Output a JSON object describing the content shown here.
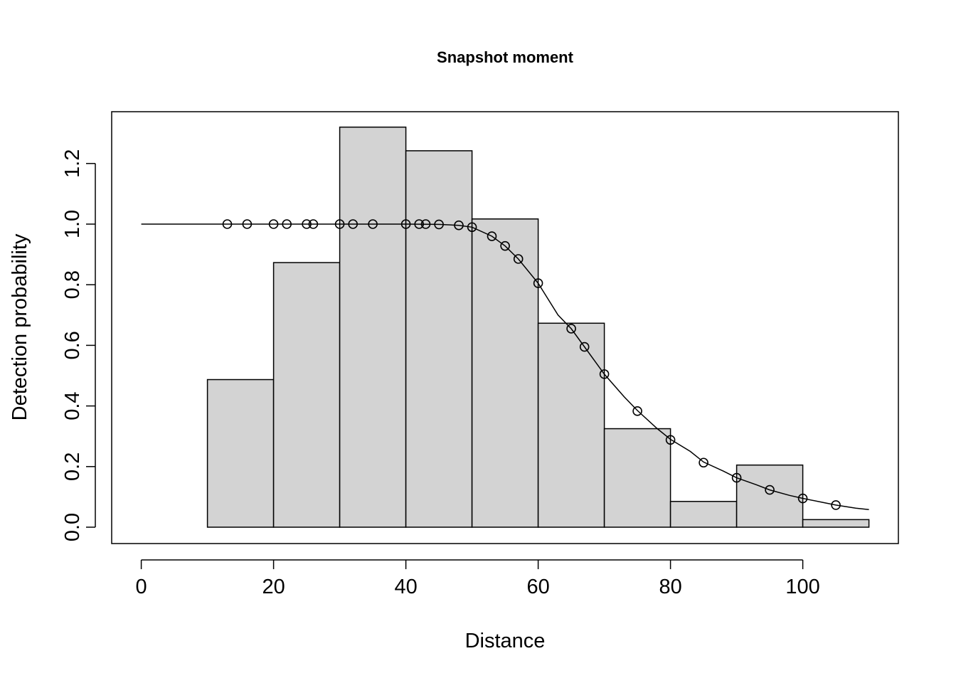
{
  "chart_data": {
    "type": "bar",
    "title": "Snapshot moment",
    "xlabel": "Distance",
    "ylabel": "Detection probability",
    "xlim": [
      0,
      110
    ],
    "ylim": [
      0,
      1.3
    ],
    "x_ticks": [
      "0",
      "20",
      "40",
      "60",
      "80",
      "100"
    ],
    "y_ticks": [
      "0.0",
      "0.2",
      "0.4",
      "0.6",
      "0.8",
      "1.0",
      "1.2"
    ],
    "histogram": {
      "bin_edges": [
        0,
        10,
        20,
        30,
        40,
        50,
        60,
        70,
        80,
        90,
        100,
        110
      ],
      "values": [
        0.0,
        0.487,
        0.873,
        1.32,
        1.242,
        1.017,
        0.673,
        0.325,
        0.085,
        0.205,
        0.025
      ],
      "fill_color": "#d3d3d3"
    },
    "fitted_curve": {
      "x": [
        0,
        5,
        10,
        15,
        20,
        25,
        30,
        35,
        40,
        45,
        48,
        50,
        53,
        55,
        57,
        60,
        63,
        65,
        67,
        70,
        73,
        75,
        78,
        80,
        83,
        85,
        88,
        90,
        93,
        95,
        98,
        100,
        103,
        105,
        108,
        110
      ],
      "y": [
        1.0,
        1.0,
        1.0,
        1.0,
        1.0,
        1.0,
        1.0,
        1.0,
        1.0,
        0.999,
        0.996,
        0.99,
        0.96,
        0.928,
        0.885,
        0.805,
        0.7,
        0.655,
        0.595,
        0.505,
        0.43,
        0.385,
        0.325,
        0.29,
        0.25,
        0.215,
        0.185,
        0.163,
        0.14,
        0.123,
        0.105,
        0.095,
        0.082,
        0.073,
        0.063,
        0.058
      ]
    },
    "points": {
      "x": [
        13,
        16,
        20,
        22,
        25,
        26,
        30,
        32,
        35,
        40,
        42,
        43,
        45,
        48,
        50,
        53,
        55,
        57,
        60,
        65,
        67,
        70,
        75,
        80,
        85,
        90,
        95,
        100,
        105
      ],
      "y": [
        1.0,
        1.0,
        1.0,
        1.0,
        1.0,
        1.0,
        1.0,
        1.0,
        1.0,
        1.0,
        1.0,
        1.0,
        0.999,
        0.996,
        0.99,
        0.96,
        0.928,
        0.885,
        0.805,
        0.655,
        0.595,
        0.505,
        0.383,
        0.288,
        0.213,
        0.163,
        0.123,
        0.095,
        0.073
      ]
    }
  }
}
